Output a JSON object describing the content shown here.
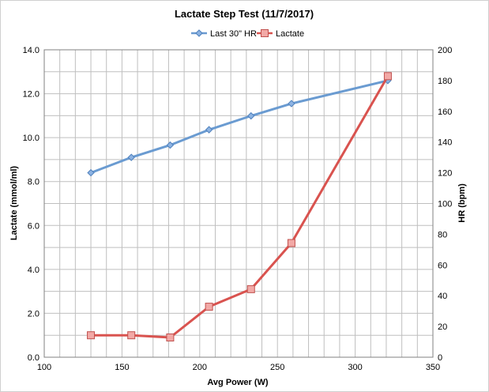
{
  "chart_data": {
    "type": "line",
    "title": "Lactate Step Test (11/7/2017)",
    "xlabel": "Avg Power (W)",
    "ylabel": "Lactate (mmol/ml)",
    "y2label": "HR (bpm)",
    "xlim": [
      100,
      350
    ],
    "ylim": [
      0,
      14
    ],
    "y2lim": [
      0,
      200
    ],
    "x_ticks": [
      "100",
      "150",
      "200",
      "250",
      "300",
      "350"
    ],
    "y_ticks": [
      "0.0",
      "2.0",
      "4.0",
      "6.0",
      "8.0",
      "10.0",
      "12.0",
      "14.0"
    ],
    "y2_ticks": [
      "0",
      "20",
      "40",
      "60",
      "80",
      "100",
      "120",
      "140",
      "160",
      "180",
      "200"
    ],
    "grid": true,
    "legend_position": "top",
    "series": [
      {
        "name": "Last 30\" HR",
        "axis": "right",
        "color": "#6a9bd1",
        "marker": "diamond",
        "x": [
          130,
          156,
          181,
          206,
          233,
          259,
          321
        ],
        "values": [
          120,
          130,
          138,
          148,
          157,
          165,
          180
        ]
      },
      {
        "name": "Lactate",
        "axis": "left",
        "color": "#d9534f",
        "marker": "square",
        "x": [
          130,
          156,
          181,
          206,
          233,
          259,
          321
        ],
        "values": [
          1.0,
          1.0,
          0.9,
          2.3,
          3.1,
          5.2,
          12.8
        ]
      }
    ]
  }
}
